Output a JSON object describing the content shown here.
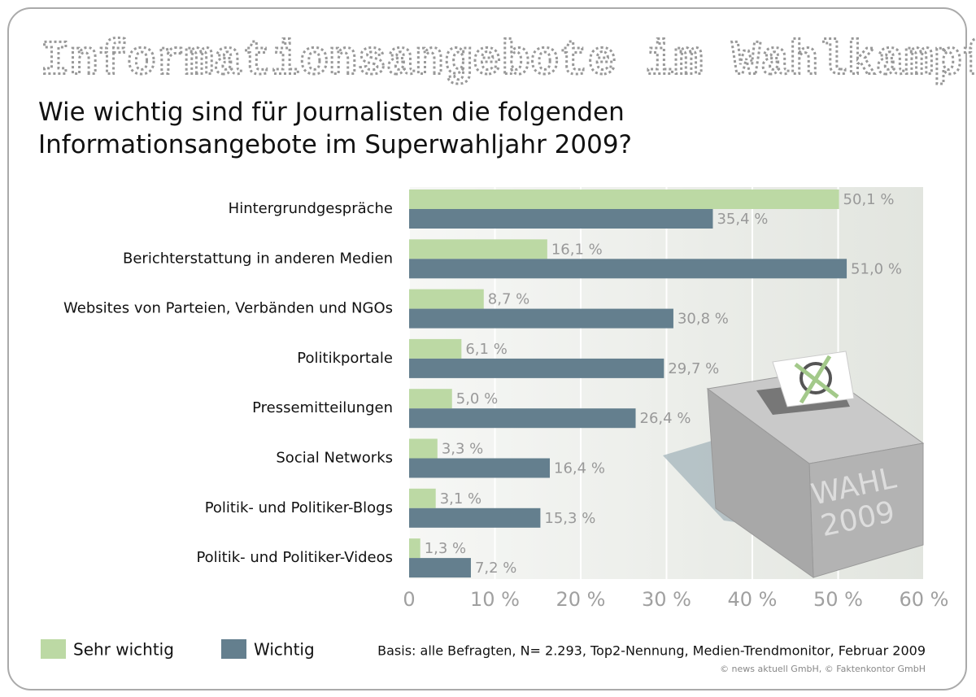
{
  "chart_data": {
    "type": "hbar",
    "title": "Informationsangebote im Wahlkampf",
    "subtitle": "Wie wichtig sind für Journalisten die folgenden Informationsangebote im Superwahljahr 2009?",
    "categories": [
      "Hintergrundgespräche",
      "Berichterstattung in anderen Medien",
      "Websites von Parteien, Verbänden und NGOs",
      "Politikportale",
      "Pressemitteilungen",
      "Social Networks",
      "Politik- und Politiker-Blogs",
      "Politik- und Politiker-Videos"
    ],
    "series": [
      {
        "name": "Sehr wichtig",
        "color": "#bcd9a4",
        "values": [
          50.1,
          16.1,
          8.7,
          6.1,
          5.0,
          3.3,
          3.1,
          1.3
        ],
        "value_labels": [
          "50,1 %",
          "16,1 %",
          "8,7 %",
          "6,1 %",
          "5,0 %",
          "3,3 %",
          "3,1 %",
          "1,3 %"
        ]
      },
      {
        "name": "Wichtig",
        "color": "#647f8e",
        "values": [
          35.4,
          51.0,
          30.8,
          29.7,
          26.4,
          16.4,
          15.3,
          7.2
        ],
        "value_labels": [
          "35,4 %",
          "51,0 %",
          "30,8 %",
          "29,7 %",
          "26,4 %",
          "16,4 %",
          "15,3 %",
          "7,2 %"
        ]
      }
    ],
    "xlim": [
      0,
      60
    ],
    "xticks": [
      0,
      {
        "value": 10,
        "label": "10 %"
      },
      {
        "value": 20,
        "label": "20 %"
      },
      {
        "value": 30,
        "label": "30 %"
      },
      {
        "value": 40,
        "label": "40 %"
      },
      {
        "value": 50,
        "label": "50 %"
      },
      {
        "value": 60,
        "label": "60 %"
      }
    ],
    "grid": true,
    "source": "Basis: alle Befragten, N= 2.293, Top2-Nennung, Medien-Trendmonitor, Februar 2009",
    "copyright": "© news aktuell GmbH, © Faktenkontor GmbH",
    "illustration_text": [
      "WAHL",
      "2009"
    ]
  }
}
